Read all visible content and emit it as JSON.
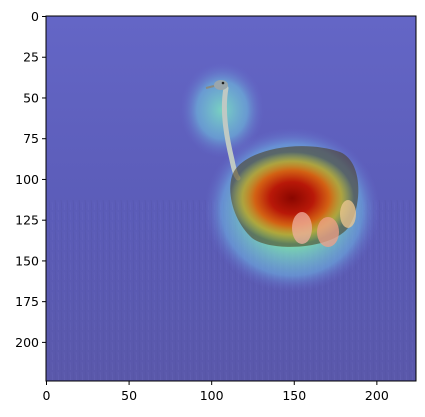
{
  "figure": {
    "image_description_icon": "ostrich-gradcam-heatmap-icon",
    "overlay_colormap": "jet",
    "colors": {
      "background_low": "#5a5ab8",
      "heat_mid": "#6ee0a8",
      "heat_high": "#e8e040",
      "heat_peak": "#b01000",
      "frame": "#000000"
    },
    "axes": {
      "x_ticks": [
        0,
        50,
        100,
        150,
        200
      ],
      "y_ticks": [
        0,
        25,
        50,
        75,
        100,
        125,
        150,
        175,
        200
      ],
      "x_range": [
        0,
        224
      ],
      "y_range": [
        224,
        0
      ]
    }
  }
}
